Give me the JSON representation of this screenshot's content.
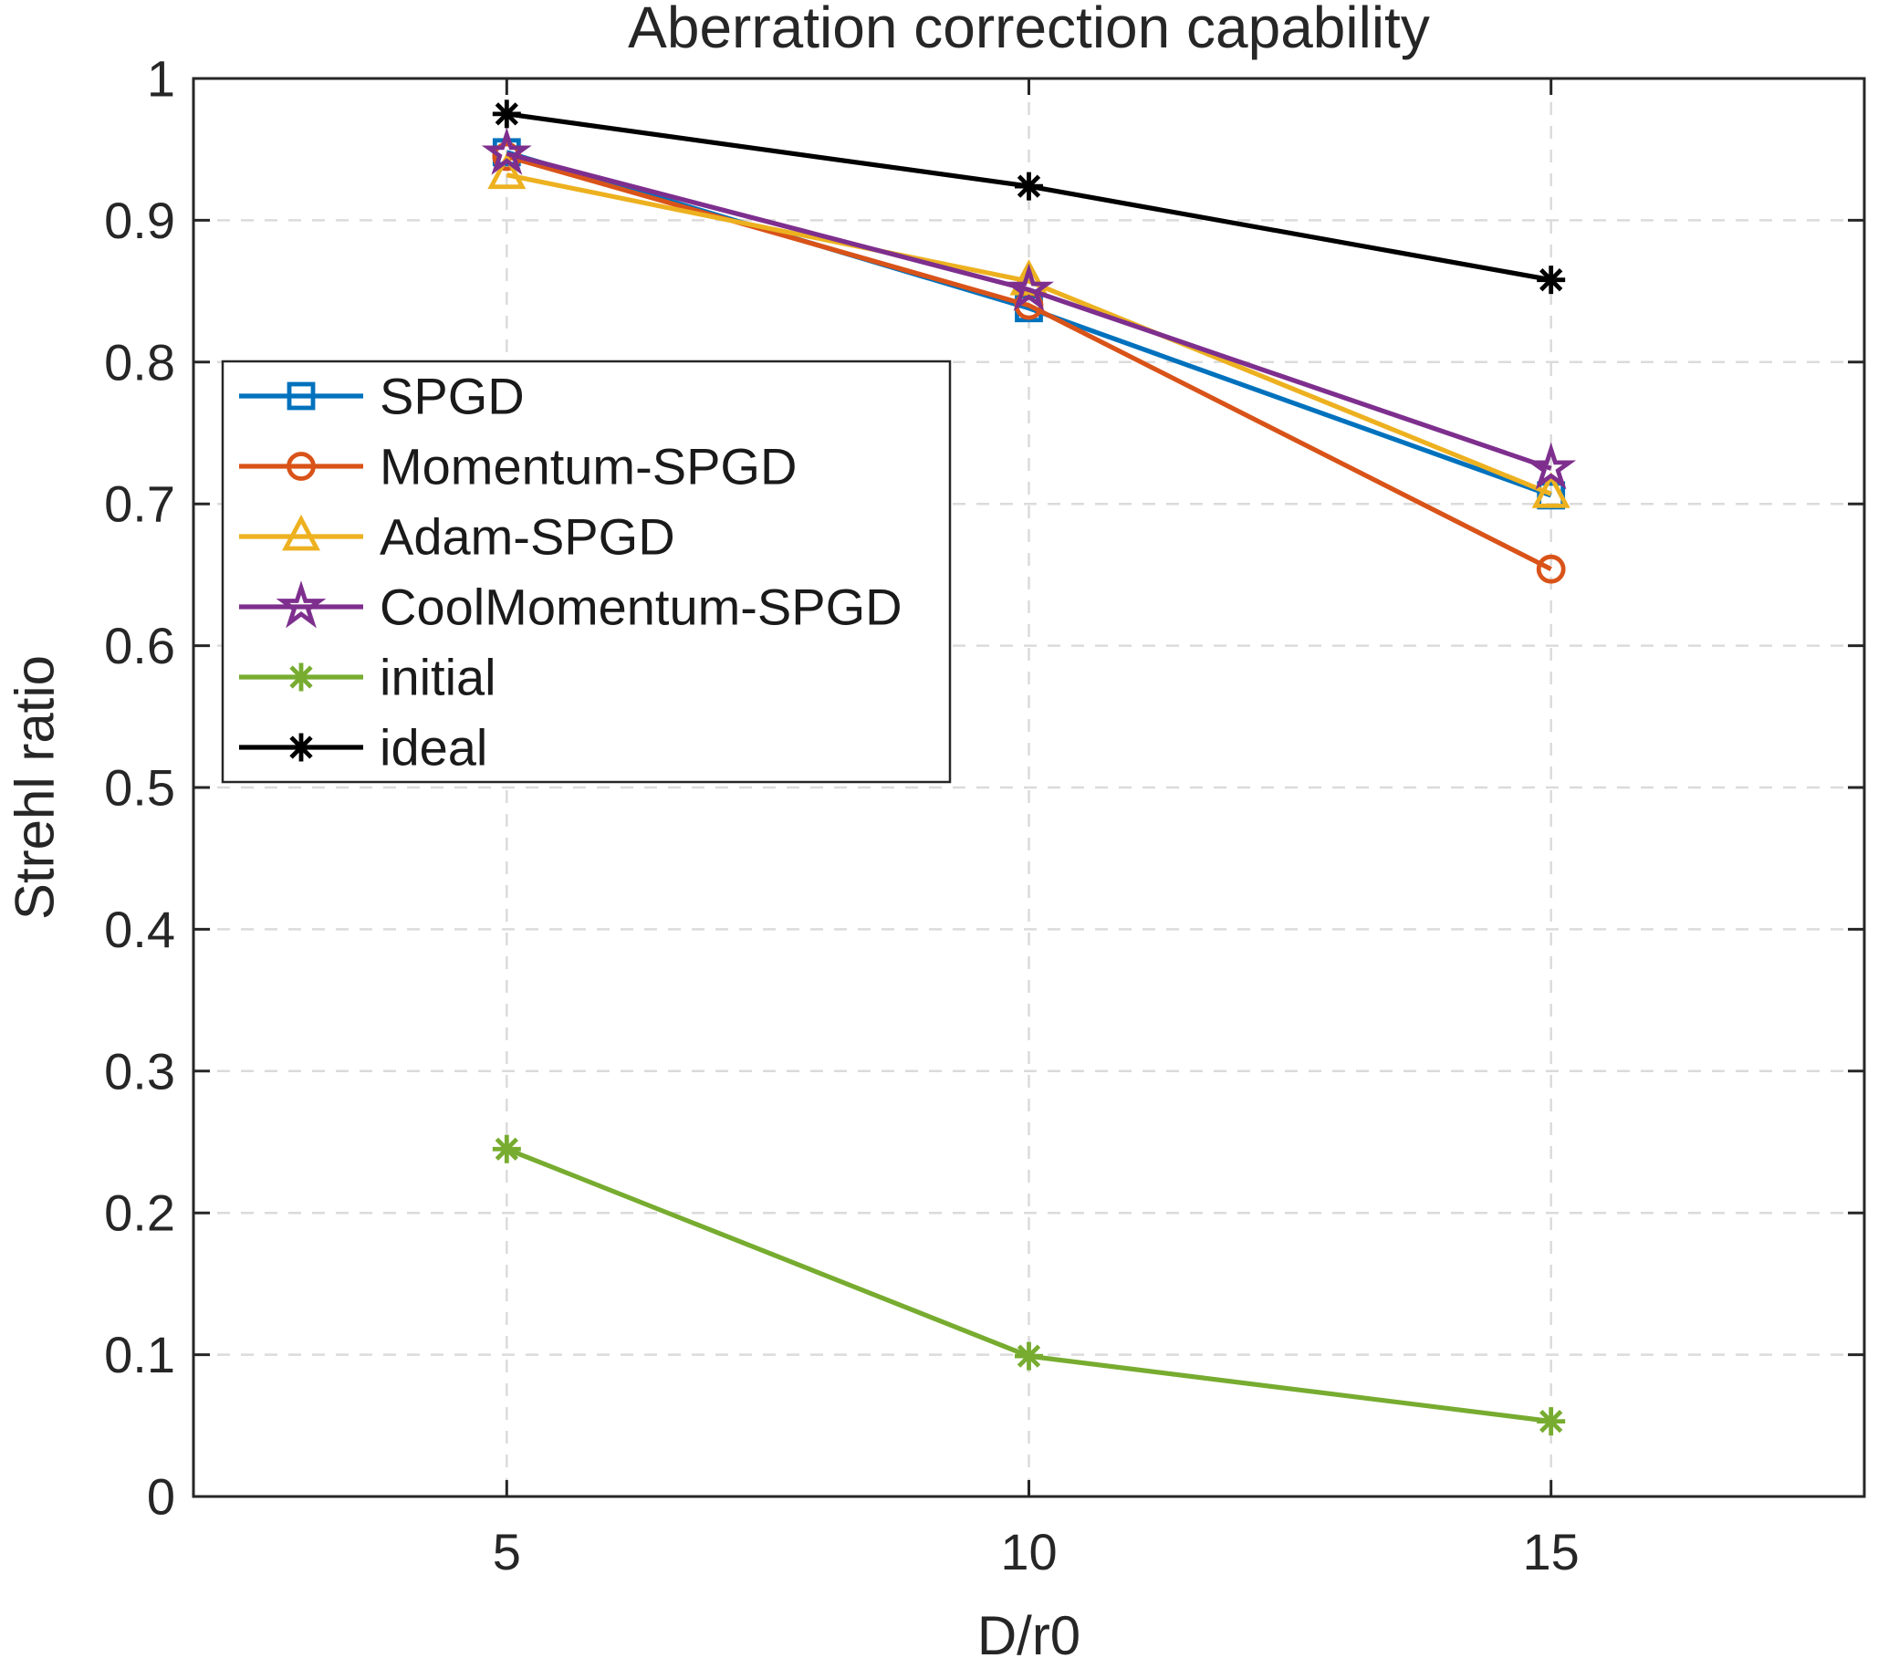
{
  "chart_data": {
    "type": "line",
    "title": "Aberration correction capability",
    "xlabel": "D/r0",
    "ylabel": "Strehl ratio",
    "x": [
      5,
      10,
      15
    ],
    "xlim": [
      2,
      18
    ],
    "ylim": [
      0,
      1
    ],
    "x_ticks": [
      5,
      10,
      15
    ],
    "x_tick_labels": [
      "5",
      "10",
      "15"
    ],
    "y_ticks": [
      0,
      0.1,
      0.2,
      0.3,
      0.4,
      0.5,
      0.6,
      0.7,
      0.8,
      0.9,
      1
    ],
    "y_tick_labels": [
      "0",
      "0.1",
      "0.2",
      "0.3",
      "0.4",
      "0.5",
      "0.6",
      "0.7",
      "0.8",
      "0.9",
      "1"
    ],
    "grid": "dashed",
    "legend_position": "upper-left-inside",
    "axis_color": "#262626",
    "grid_color": "#DBDBDB",
    "background_color": "#ffffff",
    "series": [
      {
        "name": "SPGD",
        "color": "#0072BD",
        "marker": "square",
        "values": [
          0.948,
          0.838,
          0.706
        ]
      },
      {
        "name": "Momentum-SPGD",
        "color": "#D95319",
        "marker": "circle",
        "values": [
          0.945,
          0.84,
          0.654
        ]
      },
      {
        "name": "Adam-SPGD",
        "color": "#EDB120",
        "marker": "triangle",
        "values": [
          0.932,
          0.857,
          0.707
        ]
      },
      {
        "name": "CoolMomentum-SPGD",
        "color": "#7E2F8E",
        "marker": "star",
        "values": [
          0.947,
          0.851,
          0.725
        ]
      },
      {
        "name": "initial",
        "color": "#77AC30",
        "marker": "asterisk",
        "values": [
          0.245,
          0.099,
          0.053
        ]
      },
      {
        "name": "ideal",
        "color": "#000000",
        "marker": "asterisk",
        "values": [
          0.975,
          0.924,
          0.858
        ]
      }
    ]
  }
}
